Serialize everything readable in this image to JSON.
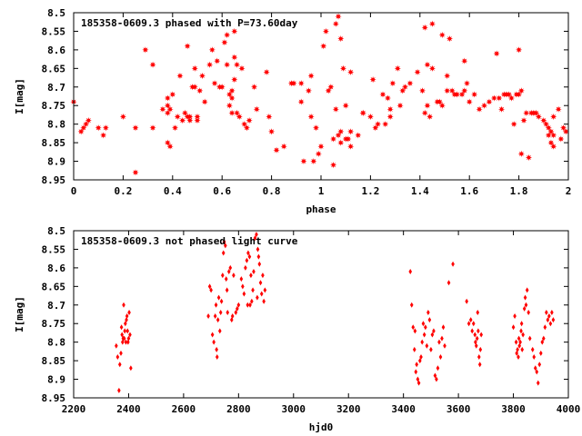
{
  "chart_data": [
    {
      "type": "scatter",
      "title": "185358-0609.3 phased with P=73.60day",
      "xlabel": "phase",
      "ylabel": "I[mag]",
      "xlim": [
        0,
        2
      ],
      "ylim": [
        8.95,
        8.5
      ],
      "y_inverted": true,
      "xticks": [
        0,
        0.2,
        0.4,
        0.6,
        0.8,
        1,
        1.2,
        1.4,
        1.6,
        1.8,
        2
      ],
      "xtick_labels": [
        "0",
        "0.2",
        "0.4",
        "0.6",
        "0.8",
        "1",
        "1.2",
        "1.4",
        "1.6",
        "1.8",
        "2"
      ],
      "yticks": [
        8.5,
        8.55,
        8.6,
        8.65,
        8.7,
        8.75,
        8.8,
        8.85,
        8.9,
        8.95
      ],
      "ytick_labels": [
        "8.5",
        "8.55",
        "8.6",
        "8.65",
        "8.7",
        "8.75",
        "8.8",
        "8.85",
        "8.9",
        "8.95"
      ],
      "marker": "star",
      "color": "#ff0000",
      "points": [
        [
          0.0,
          8.74
        ],
        [
          0.03,
          8.82
        ],
        [
          0.04,
          8.81
        ],
        [
          0.05,
          8.8
        ],
        [
          0.06,
          8.79
        ],
        [
          0.1,
          8.81
        ],
        [
          0.12,
          8.83
        ],
        [
          0.13,
          8.81
        ],
        [
          0.2,
          8.78
        ],
        [
          0.25,
          8.93
        ],
        [
          0.25,
          8.81
        ],
        [
          0.29,
          8.6
        ],
        [
          0.32,
          8.64
        ],
        [
          0.32,
          8.81
        ],
        [
          0.36,
          8.76
        ],
        [
          0.38,
          8.73
        ],
        [
          0.38,
          8.75
        ],
        [
          0.38,
          8.77
        ],
        [
          0.38,
          8.85
        ],
        [
          0.39,
          8.86
        ],
        [
          0.39,
          8.76
        ],
        [
          0.4,
          8.72
        ],
        [
          0.41,
          8.81
        ],
        [
          0.42,
          8.78
        ],
        [
          0.43,
          8.67
        ],
        [
          0.44,
          8.79
        ],
        [
          0.45,
          8.77
        ],
        [
          0.46,
          8.78
        ],
        [
          0.46,
          8.59
        ],
        [
          0.47,
          8.78
        ],
        [
          0.47,
          8.79
        ],
        [
          0.48,
          8.7
        ],
        [
          0.49,
          8.7
        ],
        [
          0.49,
          8.65
        ],
        [
          0.5,
          8.79
        ],
        [
          0.5,
          8.78
        ],
        [
          0.51,
          8.71
        ],
        [
          0.52,
          8.67
        ],
        [
          0.53,
          8.74
        ],
        [
          0.55,
          8.64
        ],
        [
          0.56,
          8.6
        ],
        [
          0.57,
          8.69
        ],
        [
          0.58,
          8.63
        ],
        [
          0.59,
          8.7
        ],
        [
          0.6,
          8.7
        ],
        [
          0.61,
          8.58
        ],
        [
          0.62,
          8.56
        ],
        [
          0.62,
          8.64
        ],
        [
          0.63,
          8.72
        ],
        [
          0.63,
          8.75
        ],
        [
          0.64,
          8.77
        ],
        [
          0.64,
          8.73
        ],
        [
          0.65,
          8.68
        ],
        [
          0.65,
          8.55
        ],
        [
          0.65,
          8.62
        ],
        [
          0.66,
          8.64
        ],
        [
          0.66,
          8.77
        ],
        [
          0.67,
          8.78
        ],
        [
          0.68,
          8.65
        ],
        [
          0.69,
          8.8
        ],
        [
          0.7,
          8.81
        ],
        [
          0.71,
          8.79
        ],
        [
          0.73,
          8.7
        ],
        [
          0.74,
          8.76
        ],
        [
          0.78,
          8.66
        ],
        [
          0.79,
          8.78
        ],
        [
          0.8,
          8.82
        ],
        [
          0.82,
          8.87
        ],
        [
          0.85,
          8.86
        ],
        [
          0.88,
          8.69
        ],
        [
          0.89,
          8.69
        ],
        [
          0.92,
          8.69
        ],
        [
          0.92,
          8.74
        ],
        [
          0.93,
          8.9
        ],
        [
          0.95,
          8.71
        ],
        [
          0.96,
          8.67
        ],
        [
          0.96,
          8.78
        ],
        [
          0.97,
          8.9
        ],
        [
          0.98,
          8.81
        ],
        [
          0.99,
          8.88
        ],
        [
          1.0,
          8.86
        ],
        [
          1.01,
          8.59
        ],
        [
          1.02,
          8.55
        ],
        [
          1.03,
          8.71
        ],
        [
          1.04,
          8.7
        ],
        [
          1.05,
          8.91
        ],
        [
          1.05,
          8.84
        ],
        [
          1.06,
          8.53
        ],
        [
          1.06,
          8.76
        ],
        [
          1.07,
          8.83
        ],
        [
          1.07,
          8.51
        ],
        [
          1.08,
          8.85
        ],
        [
          1.08,
          8.57
        ],
        [
          1.08,
          8.82
        ],
        [
          1.09,
          8.65
        ],
        [
          1.1,
          8.84
        ],
        [
          1.1,
          8.75
        ],
        [
          1.11,
          8.84
        ],
        [
          1.12,
          8.66
        ],
        [
          1.12,
          8.82
        ],
        [
          1.12,
          8.86
        ],
        [
          1.15,
          8.83
        ],
        [
          1.17,
          8.77
        ],
        [
          1.17,
          8.77
        ],
        [
          1.2,
          8.78
        ],
        [
          1.21,
          8.68
        ],
        [
          1.22,
          8.81
        ],
        [
          1.23,
          8.8
        ],
        [
          1.25,
          8.72
        ],
        [
          1.26,
          8.8
        ],
        [
          1.27,
          8.73
        ],
        [
          1.28,
          8.78
        ],
        [
          1.28,
          8.76
        ],
        [
          1.29,
          8.69
        ],
        [
          1.31,
          8.65
        ],
        [
          1.32,
          8.75
        ],
        [
          1.33,
          8.71
        ],
        [
          1.34,
          8.7
        ],
        [
          1.36,
          8.69
        ],
        [
          1.39,
          8.66
        ],
        [
          1.41,
          8.71
        ],
        [
          1.42,
          8.54
        ],
        [
          1.42,
          8.77
        ],
        [
          1.43,
          8.64
        ],
        [
          1.43,
          8.75
        ],
        [
          1.44,
          8.78
        ],
        [
          1.45,
          8.65
        ],
        [
          1.45,
          8.53
        ],
        [
          1.47,
          8.74
        ],
        [
          1.48,
          8.74
        ],
        [
          1.49,
          8.56
        ],
        [
          1.49,
          8.75
        ],
        [
          1.51,
          8.71
        ],
        [
          1.51,
          8.67
        ],
        [
          1.52,
          8.57
        ],
        [
          1.53,
          8.71
        ],
        [
          1.54,
          8.72
        ],
        [
          1.55,
          8.72
        ],
        [
          1.57,
          8.72
        ],
        [
          1.58,
          8.71
        ],
        [
          1.58,
          8.63
        ],
        [
          1.59,
          8.69
        ],
        [
          1.6,
          8.74
        ],
        [
          1.62,
          8.72
        ],
        [
          1.64,
          8.76
        ],
        [
          1.66,
          8.75
        ],
        [
          1.68,
          8.74
        ],
        [
          1.7,
          8.73
        ],
        [
          1.71,
          8.61
        ],
        [
          1.72,
          8.73
        ],
        [
          1.73,
          8.76
        ],
        [
          1.74,
          8.72
        ],
        [
          1.75,
          8.72
        ],
        [
          1.76,
          8.72
        ],
        [
          1.77,
          8.73
        ],
        [
          1.78,
          8.8
        ],
        [
          1.79,
          8.72
        ],
        [
          1.8,
          8.72
        ],
        [
          1.8,
          8.6
        ],
        [
          1.81,
          8.71
        ],
        [
          1.82,
          8.79
        ],
        [
          1.83,
          8.77
        ],
        [
          1.84,
          8.89
        ],
        [
          1.85,
          8.77
        ],
        [
          1.86,
          8.77
        ],
        [
          1.87,
          8.77
        ],
        [
          1.88,
          8.78
        ],
        [
          1.9,
          8.79
        ],
        [
          1.91,
          8.8
        ],
        [
          1.92,
          8.83
        ],
        [
          1.92,
          8.81
        ],
        [
          1.93,
          8.85
        ],
        [
          1.93,
          8.82
        ],
        [
          1.94,
          8.78
        ],
        [
          1.94,
          8.86
        ],
        [
          1.94,
          8.83
        ],
        [
          1.96,
          8.76
        ],
        [
          1.97,
          8.84
        ],
        [
          1.98,
          8.81
        ],
        [
          1.99,
          8.82
        ],
        [
          1.81,
          8.88
        ],
        [
          0.64,
          8.71
        ]
      ]
    },
    {
      "type": "scatter",
      "title": "185358-0609.3 not phased light curve",
      "xlabel": "hjd0",
      "ylabel": "I[mag]",
      "xlim": [
        2200,
        4000
      ],
      "ylim": [
        8.95,
        8.5
      ],
      "y_inverted": true,
      "xticks": [
        2200,
        2400,
        2600,
        2800,
        3000,
        3200,
        3400,
        3600,
        3800,
        4000
      ],
      "xtick_labels": [
        "2200",
        "2400",
        "2600",
        "2800",
        "3000",
        "3200",
        "3400",
        "3600",
        "3800",
        "4000"
      ],
      "yticks": [
        8.5,
        8.55,
        8.6,
        8.65,
        8.7,
        8.75,
        8.8,
        8.85,
        8.9,
        8.95
      ],
      "ytick_labels": [
        "8.5",
        "8.55",
        "8.6",
        "8.65",
        "8.7",
        "8.75",
        "8.8",
        "8.85",
        "8.9",
        "8.95"
      ],
      "marker": "diamond",
      "color": "#ff0000",
      "points": [
        [
          2355,
          8.81
        ],
        [
          2360,
          8.84
        ],
        [
          2365,
          8.93
        ],
        [
          2368,
          8.86
        ],
        [
          2372,
          8.83
        ],
        [
          2374,
          8.76
        ],
        [
          2376,
          8.78
        ],
        [
          2378,
          8.8
        ],
        [
          2380,
          8.79
        ],
        [
          2382,
          8.7
        ],
        [
          2384,
          8.79
        ],
        [
          2386,
          8.77
        ],
        [
          2388,
          8.75
        ],
        [
          2390,
          8.8
        ],
        [
          2392,
          8.74
        ],
        [
          2394,
          8.73
        ],
        [
          2396,
          8.77
        ],
        [
          2398,
          8.8
        ],
        [
          2400,
          8.79
        ],
        [
          2402,
          8.72
        ],
        [
          2405,
          8.78
        ],
        [
          2408,
          8.87
        ],
        [
          2690,
          8.73
        ],
        [
          2695,
          8.65
        ],
        [
          2700,
          8.66
        ],
        [
          2705,
          8.78
        ],
        [
          2710,
          8.8
        ],
        [
          2715,
          8.73
        ],
        [
          2718,
          8.7
        ],
        [
          2720,
          8.82
        ],
        [
          2722,
          8.84
        ],
        [
          2725,
          8.74
        ],
        [
          2728,
          8.68
        ],
        [
          2732,
          8.77
        ],
        [
          2735,
          8.72
        ],
        [
          2738,
          8.69
        ],
        [
          2742,
          8.62
        ],
        [
          2745,
          8.56
        ],
        [
          2748,
          8.53
        ],
        [
          2752,
          8.54
        ],
        [
          2755,
          8.63
        ],
        [
          2758,
          8.66
        ],
        [
          2760,
          8.72
        ],
        [
          2765,
          8.61
        ],
        [
          2770,
          8.6
        ],
        [
          2775,
          8.74
        ],
        [
          2778,
          8.73
        ],
        [
          2782,
          8.62
        ],
        [
          2790,
          8.72
        ],
        [
          2795,
          8.71
        ],
        [
          2800,
          8.7
        ],
        [
          2810,
          8.63
        ],
        [
          2815,
          8.65
        ],
        [
          2820,
          8.67
        ],
        [
          2825,
          8.6
        ],
        [
          2830,
          8.58
        ],
        [
          2833,
          8.7
        ],
        [
          2835,
          8.56
        ],
        [
          2840,
          8.57
        ],
        [
          2842,
          8.7
        ],
        [
          2845,
          8.62
        ],
        [
          2848,
          8.69
        ],
        [
          2852,
          8.66
        ],
        [
          2855,
          8.61
        ],
        [
          2860,
          8.52
        ],
        [
          2865,
          8.51
        ],
        [
          2868,
          8.68
        ],
        [
          2870,
          8.55
        ],
        [
          2873,
          8.57
        ],
        [
          2876,
          8.59
        ],
        [
          2880,
          8.64
        ],
        [
          2884,
          8.67
        ],
        [
          2888,
          8.62
        ],
        [
          2892,
          8.69
        ],
        [
          2896,
          8.66
        ],
        [
          3425,
          8.61
        ],
        [
          3430,
          8.7
        ],
        [
          3435,
          8.76
        ],
        [
          3440,
          8.82
        ],
        [
          3442,
          8.77
        ],
        [
          3445,
          8.88
        ],
        [
          3448,
          8.86
        ],
        [
          3452,
          8.9
        ],
        [
          3456,
          8.91
        ],
        [
          3460,
          8.85
        ],
        [
          3464,
          8.84
        ],
        [
          3468,
          8.8
        ],
        [
          3472,
          8.75
        ],
        [
          3476,
          8.78
        ],
        [
          3480,
          8.76
        ],
        [
          3485,
          8.81
        ],
        [
          3490,
          8.72
        ],
        [
          3495,
          8.74
        ],
        [
          3500,
          8.82
        ],
        [
          3505,
          8.78
        ],
        [
          3510,
          8.77
        ],
        [
          3515,
          8.89
        ],
        [
          3520,
          8.9
        ],
        [
          3525,
          8.87
        ],
        [
          3530,
          8.8
        ],
        [
          3535,
          8.84
        ],
        [
          3540,
          8.79
        ],
        [
          3545,
          8.76
        ],
        [
          3550,
          8.81
        ],
        [
          3565,
          8.64
        ],
        [
          3580,
          8.59
        ],
        [
          3630,
          8.69
        ],
        [
          3638,
          8.75
        ],
        [
          3645,
          8.74
        ],
        [
          3650,
          8.77
        ],
        [
          3655,
          8.75
        ],
        [
          3660,
          8.78
        ],
        [
          3662,
          8.8
        ],
        [
          3665,
          8.81
        ],
        [
          3668,
          8.79
        ],
        [
          3670,
          8.72
        ],
        [
          3672,
          8.77
        ],
        [
          3675,
          8.84
        ],
        [
          3678,
          8.86
        ],
        [
          3680,
          8.82
        ],
        [
          3683,
          8.78
        ],
        [
          3800,
          8.76
        ],
        [
          3805,
          8.73
        ],
        [
          3810,
          8.8
        ],
        [
          3812,
          8.83
        ],
        [
          3815,
          8.82
        ],
        [
          3818,
          8.84
        ],
        [
          3820,
          8.79
        ],
        [
          3822,
          8.81
        ],
        [
          3825,
          8.8
        ],
        [
          3828,
          8.77
        ],
        [
          3830,
          8.75
        ],
        [
          3832,
          8.82
        ],
        [
          3835,
          8.78
        ],
        [
          3840,
          8.71
        ],
        [
          3843,
          8.68
        ],
        [
          3846,
          8.7
        ],
        [
          3850,
          8.66
        ],
        [
          3855,
          8.72
        ],
        [
          3860,
          8.79
        ],
        [
          3870,
          8.82
        ],
        [
          3875,
          8.84
        ],
        [
          3880,
          8.87
        ],
        [
          3885,
          8.88
        ],
        [
          3890,
          8.91
        ],
        [
          3895,
          8.86
        ],
        [
          3900,
          8.83
        ],
        [
          3905,
          8.8
        ],
        [
          3910,
          8.79
        ],
        [
          3915,
          8.76
        ],
        [
          3920,
          8.72
        ],
        [
          3925,
          8.74
        ],
        [
          3930,
          8.73
        ],
        [
          3935,
          8.75
        ],
        [
          3940,
          8.72
        ],
        [
          3945,
          8.74
        ]
      ]
    }
  ]
}
